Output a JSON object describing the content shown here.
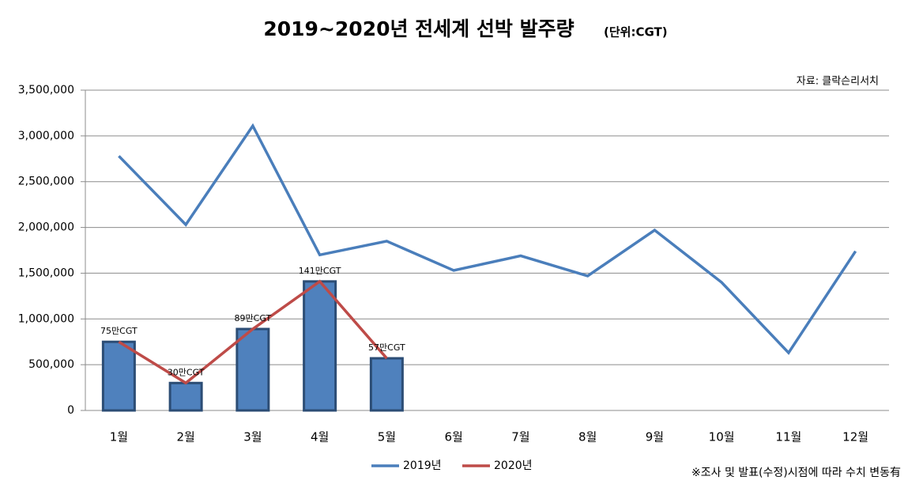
{
  "chart_data": {
    "type": "bar+line",
    "title": "2019~2020년 전세계 선박 발주량",
    "subtitle": "(단위:CGT)",
    "source": "자료: 클락슨리서치",
    "note": "※조사 및 발표(수정)시점에 따라 수치 변동有",
    "categories": [
      "1월",
      "2월",
      "3월",
      "4월",
      "5월",
      "6월",
      "7월",
      "8월",
      "9월",
      "10월",
      "11월",
      "12월"
    ],
    "series": [
      {
        "name": "2019년",
        "color": "#4a7ebb",
        "values": [
          2780000,
          2030000,
          3110000,
          1700000,
          1850000,
          1530000,
          1690000,
          1470000,
          1970000,
          1400000,
          630000,
          1740000
        ]
      },
      {
        "name": "2020년",
        "color": "#be4b48",
        "bar_color": "#4f81bd",
        "values": [
          750000,
          300000,
          890000,
          1410000,
          570000,
          null,
          null,
          null,
          null,
          null,
          null,
          null
        ],
        "value_labels": [
          "75만CGT",
          "30만CGT",
          "89만CGT",
          "141만CGT",
          "57만CGT",
          null,
          null,
          null,
          null,
          null,
          null,
          null
        ]
      }
    ],
    "ylim": [
      0,
      3500000
    ],
    "yticks": [
      0,
      {
        "value": 500000,
        "label": "500,000"
      },
      {
        "value": 1000000,
        "label": "1,000,000"
      },
      {
        "value": 1500000,
        "label": "1,500,000"
      },
      {
        "value": 2000000,
        "label": "2,000,000"
      },
      {
        "value": 2500000,
        "label": "2,500,000"
      },
      {
        "value": 3000000,
        "label": "3,000,000"
      },
      {
        "value": 3500000,
        "label": "3,500,000"
      }
    ],
    "grid": true,
    "legend": "bottom"
  }
}
